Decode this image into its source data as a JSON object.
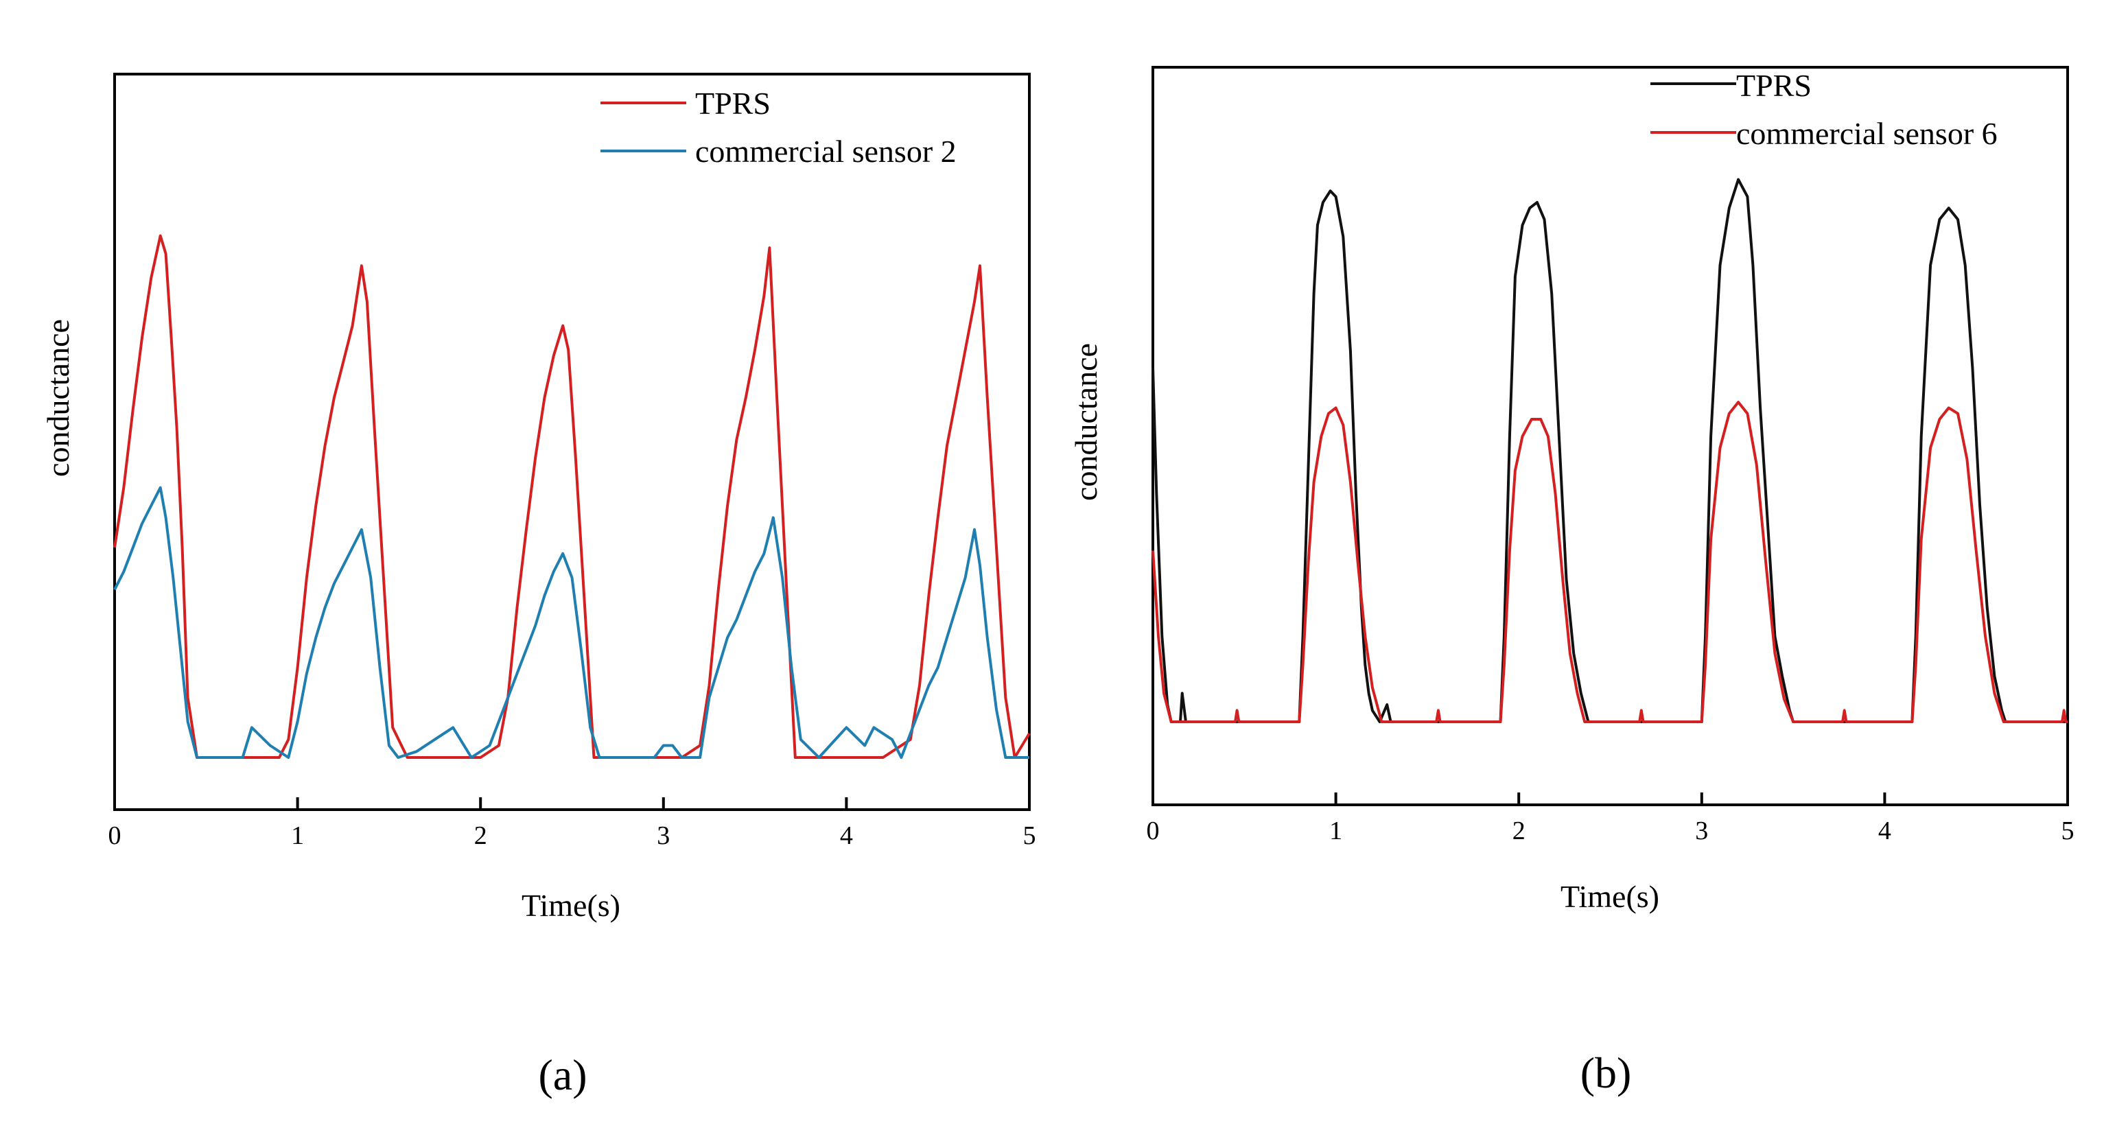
{
  "panels": [
    {
      "label": "(a)",
      "chart_data": {
        "type": "line",
        "title": "",
        "xlabel": "Time(s)",
        "ylabel": "conductance",
        "xlim": [
          0,
          5
        ],
        "ylim": [
          0,
          1
        ],
        "xticks": [
          "0",
          "1",
          "2",
          "3",
          "4",
          "5"
        ],
        "legend_position": "top-right",
        "series": [
          {
            "name": "TPRS",
            "color": "#d42020",
            "x": [
              0,
              0.05,
              0.1,
              0.15,
              0.2,
              0.25,
              0.28,
              0.31,
              0.34,
              0.37,
              0.4,
              0.45,
              0.5,
              0.7,
              0.9,
              0.95,
              1.0,
              1.05,
              1.1,
              1.15,
              1.2,
              1.25,
              1.3,
              1.35,
              1.38,
              1.42,
              1.47,
              1.52,
              1.6,
              1.8,
              2.0,
              2.1,
              2.15,
              2.2,
              2.25,
              2.3,
              2.35,
              2.4,
              2.45,
              2.48,
              2.52,
              2.57,
              2.62,
              2.7,
              2.9,
              3.1,
              3.2,
              3.25,
              3.3,
              3.35,
              3.4,
              3.45,
              3.5,
              3.55,
              3.58,
              3.62,
              3.67,
              3.72,
              3.8,
              4.0,
              4.2,
              4.35,
              4.4,
              4.45,
              4.5,
              4.55,
              4.6,
              4.65,
              4.7,
              4.73,
              4.77,
              4.82,
              4.87,
              4.92,
              5.0
            ],
            "y": [
              0.35,
              0.45,
              0.58,
              0.7,
              0.8,
              0.87,
              0.84,
              0.7,
              0.55,
              0.35,
              0.1,
              0.0,
              0.0,
              0.0,
              0.0,
              0.03,
              0.15,
              0.3,
              0.42,
              0.52,
              0.6,
              0.66,
              0.72,
              0.82,
              0.76,
              0.55,
              0.3,
              0.05,
              0.0,
              0.0,
              0.0,
              0.02,
              0.1,
              0.25,
              0.38,
              0.5,
              0.6,
              0.67,
              0.72,
              0.68,
              0.5,
              0.25,
              0.0,
              0.0,
              0.0,
              0.0,
              0.02,
              0.12,
              0.28,
              0.42,
              0.53,
              0.6,
              0.68,
              0.77,
              0.85,
              0.6,
              0.3,
              0.0,
              0.0,
              0.0,
              0.0,
              0.03,
              0.12,
              0.27,
              0.4,
              0.52,
              0.6,
              0.68,
              0.76,
              0.82,
              0.6,
              0.35,
              0.1,
              0.0,
              0.04
            ]
          },
          {
            "name": "commercial sensor 2",
            "color": "#1f7fb0",
            "x": [
              0,
              0.05,
              0.1,
              0.15,
              0.2,
              0.25,
              0.28,
              0.32,
              0.36,
              0.4,
              0.45,
              0.55,
              0.7,
              0.75,
              0.85,
              0.95,
              1.0,
              1.05,
              1.1,
              1.15,
              1.2,
              1.25,
              1.3,
              1.35,
              1.4,
              1.45,
              1.5,
              1.55,
              1.65,
              1.75,
              1.85,
              1.95,
              2.05,
              2.15,
              2.2,
              2.25,
              2.3,
              2.35,
              2.4,
              2.45,
              2.5,
              2.55,
              2.6,
              2.65,
              2.75,
              2.95,
              3.0,
              3.05,
              3.1,
              3.2,
              3.25,
              3.3,
              3.35,
              3.4,
              3.45,
              3.5,
              3.55,
              3.6,
              3.65,
              3.7,
              3.75,
              3.85,
              4.0,
              4.1,
              4.15,
              4.25,
              4.3,
              4.4,
              4.45,
              4.5,
              4.55,
              4.6,
              4.65,
              4.7,
              4.73,
              4.77,
              4.82,
              4.87,
              4.92,
              5.0
            ],
            "y": [
              0.28,
              0.31,
              0.35,
              0.39,
              0.42,
              0.45,
              0.4,
              0.3,
              0.18,
              0.06,
              0.0,
              0.0,
              0.0,
              0.05,
              0.02,
              0.0,
              0.06,
              0.14,
              0.2,
              0.25,
              0.29,
              0.32,
              0.35,
              0.38,
              0.3,
              0.15,
              0.02,
              0.0,
              0.01,
              0.03,
              0.05,
              0.0,
              0.02,
              0.1,
              0.14,
              0.18,
              0.22,
              0.27,
              0.31,
              0.34,
              0.3,
              0.18,
              0.05,
              0.0,
              0.0,
              0.0,
              0.02,
              0.02,
              0.0,
              0.0,
              0.1,
              0.15,
              0.2,
              0.23,
              0.27,
              0.31,
              0.34,
              0.4,
              0.3,
              0.15,
              0.03,
              0.0,
              0.05,
              0.02,
              0.05,
              0.03,
              0.0,
              0.08,
              0.12,
              0.15,
              0.2,
              0.25,
              0.3,
              0.38,
              0.32,
              0.2,
              0.08,
              0.0,
              0.0,
              0.0
            ]
          }
        ]
      }
    },
    {
      "label": "(b)",
      "chart_data": {
        "type": "line",
        "title": "",
        "xlabel": "Time(s)",
        "ylabel": "conductance",
        "xlim": [
          0,
          5
        ],
        "ylim": [
          0,
          1
        ],
        "xticks": [
          "0",
          "1",
          "2",
          "3",
          "4",
          "5"
        ],
        "legend_position": "top-right",
        "series": [
          {
            "name": "TPRS",
            "color": "#111111",
            "x": [
              0,
              0.02,
              0.05,
              0.08,
              0.1,
              0.12,
              0.15,
              0.16,
              0.18,
              0.2,
              0.8,
              0.82,
              0.85,
              0.88,
              0.9,
              0.93,
              0.97,
              1.0,
              1.04,
              1.08,
              1.11,
              1.14,
              1.16,
              1.18,
              1.2,
              1.24,
              1.28,
              1.3,
              1.9,
              1.92,
              1.95,
              1.98,
              2.02,
              2.06,
              2.1,
              2.14,
              2.18,
              2.22,
              2.26,
              2.3,
              2.34,
              2.38,
              2.4,
              3.0,
              3.02,
              3.05,
              3.1,
              3.15,
              3.2,
              3.25,
              3.28,
              3.32,
              3.36,
              3.4,
              3.44,
              3.48,
              3.5,
              4.15,
              4.17,
              4.2,
              4.25,
              4.3,
              4.35,
              4.4,
              4.44,
              4.48,
              4.52,
              4.56,
              4.6,
              4.64,
              4.66,
              4.7,
              5.0
            ],
            "y": [
              0.62,
              0.4,
              0.15,
              0.03,
              0.0,
              0.0,
              0.0,
              0.05,
              0.0,
              0.0,
              0.0,
              0.15,
              0.45,
              0.75,
              0.87,
              0.91,
              0.93,
              0.92,
              0.85,
              0.65,
              0.4,
              0.2,
              0.1,
              0.05,
              0.02,
              0.0,
              0.03,
              0.0,
              0.0,
              0.15,
              0.5,
              0.78,
              0.87,
              0.9,
              0.91,
              0.88,
              0.75,
              0.5,
              0.25,
              0.12,
              0.05,
              0.0,
              0.0,
              0.0,
              0.15,
              0.5,
              0.8,
              0.9,
              0.95,
              0.92,
              0.8,
              0.55,
              0.35,
              0.15,
              0.08,
              0.02,
              0.0,
              0.0,
              0.15,
              0.5,
              0.8,
              0.88,
              0.9,
              0.88,
              0.8,
              0.62,
              0.38,
              0.2,
              0.08,
              0.02,
              0.0,
              0.0,
              0.0
            ]
          },
          {
            "name": "commercial sensor 6",
            "color": "#d42020",
            "x": [
              0,
              0.03,
              0.06,
              0.1,
              0.12,
              0.45,
              0.46,
              0.47,
              0.8,
              0.82,
              0.85,
              0.88,
              0.92,
              0.96,
              1.0,
              1.04,
              1.08,
              1.12,
              1.16,
              1.2,
              1.25,
              1.55,
              1.56,
              1.57,
              1.9,
              1.92,
              1.95,
              1.98,
              2.02,
              2.07,
              2.12,
              2.16,
              2.2,
              2.24,
              2.28,
              2.32,
              2.36,
              2.66,
              2.67,
              2.68,
              3.0,
              3.02,
              3.05,
              3.1,
              3.15,
              3.2,
              3.25,
              3.3,
              3.35,
              3.4,
              3.45,
              3.5,
              3.77,
              3.78,
              3.79,
              4.15,
              4.17,
              4.2,
              4.25,
              4.3,
              4.35,
              4.4,
              4.45,
              4.5,
              4.55,
              4.6,
              4.65,
              4.7,
              4.97,
              4.98,
              4.99,
              5.0
            ],
            "y": [
              0.3,
              0.15,
              0.05,
              0.0,
              0.0,
              0.0,
              0.02,
              0.0,
              0.0,
              0.1,
              0.28,
              0.42,
              0.5,
              0.54,
              0.55,
              0.52,
              0.42,
              0.28,
              0.15,
              0.06,
              0.0,
              0.0,
              0.02,
              0.0,
              0.0,
              0.1,
              0.3,
              0.44,
              0.5,
              0.53,
              0.53,
              0.5,
              0.4,
              0.25,
              0.12,
              0.05,
              0.0,
              0.0,
              0.02,
              0.0,
              0.0,
              0.1,
              0.32,
              0.48,
              0.54,
              0.56,
              0.54,
              0.45,
              0.28,
              0.12,
              0.04,
              0.0,
              0.0,
              0.02,
              0.0,
              0.0,
              0.1,
              0.32,
              0.48,
              0.53,
              0.55,
              0.54,
              0.46,
              0.3,
              0.15,
              0.05,
              0.0,
              0.0,
              0.0,
              0.02,
              0.0,
              0.0
            ]
          }
        ]
      }
    }
  ]
}
